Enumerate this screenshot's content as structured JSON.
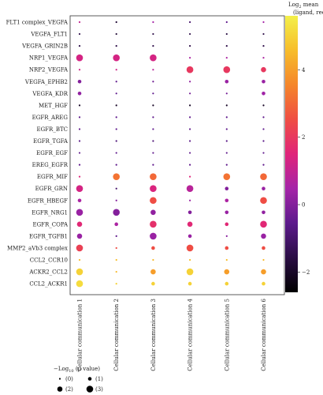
{
  "chart_data": {
    "type": "scatter",
    "rows": [
      "FLT1 complex_VEGFA",
      "VEGFA_FLT1",
      "VEGFA_GRIN2B",
      "NRP1_VEGFA",
      "NRP2_VEGFA",
      "VEGFA_EPHB2",
      "VEGFA_KDR",
      "MET_HGF",
      "EGFR_AREG",
      "EGFR_BTC",
      "EGFR_TGFA",
      "EGFR_EGF",
      "EREG_EGFR",
      "EGFR_MIF",
      "EGFR_GRN",
      "EGFR_HBEGF",
      "EGFR_NRG1",
      "EGFR_COPA",
      "EGFR_TGFB1",
      "MMP2_aVb3 complex",
      "CCL2_CCR10",
      "ACKR2_CCL2",
      "CCL2_ACKR1"
    ],
    "columns": [
      "Cellular communication 1",
      "Cellular communication 2",
      "Cellular communication 3",
      "Cellular communication 4",
      "Cellular communication 5",
      "Cellular communication 6"
    ],
    "mean_log2": [
      [
        1.0,
        -1.8,
        0.5,
        -1.0,
        -0.5,
        0.5
      ],
      [
        -1.5,
        -1.8,
        -1.5,
        -1.5,
        -1.6,
        -1.5
      ],
      [
        -1.5,
        -1.5,
        -1.5,
        -1.5,
        -1.5,
        -1.5
      ],
      [
        1.3,
        1.3,
        1.3,
        0.6,
        0.6,
        0.6
      ],
      [
        1.2,
        1.2,
        0.8,
        2.0,
        2.0,
        2.0
      ],
      [
        0.0,
        -0.5,
        -0.3,
        0.2,
        0.3,
        0.3
      ],
      [
        0.2,
        -0.5,
        -0.5,
        -0.2,
        -0.2,
        0.4
      ],
      [
        -2.0,
        -2.0,
        -2.0,
        -2.0,
        -2.0,
        -2.0
      ],
      [
        -0.5,
        -0.5,
        -0.5,
        -0.5,
        -0.5,
        -0.5
      ],
      [
        -0.5,
        -0.5,
        -0.5,
        -0.5,
        -0.5,
        -0.5
      ],
      [
        -0.6,
        -0.8,
        -0.8,
        -0.6,
        -0.6,
        -0.6
      ],
      [
        -0.5,
        -0.5,
        -0.5,
        -0.5,
        -0.5,
        -0.5
      ],
      [
        -0.5,
        -0.5,
        -0.5,
        -0.5,
        -0.5,
        -0.5
      ],
      [
        1.5,
        3.2,
        3.0,
        1.5,
        3.2,
        3.0
      ],
      [
        1.3,
        -1.0,
        1.4,
        0.8,
        0.0,
        0.3
      ],
      [
        0.6,
        0.0,
        2.5,
        0.3,
        0.6,
        2.5
      ],
      [
        0.3,
        0.0,
        0.2,
        0.0,
        0.3,
        0.2
      ],
      [
        1.6,
        0.6,
        1.8,
        1.6,
        1.6,
        1.6
      ],
      [
        0.3,
        -0.5,
        0.3,
        0.3,
        0.1,
        0.3
      ],
      [
        2.2,
        2.5,
        2.5,
        2.5,
        2.5,
        2.5
      ],
      [
        4.5,
        4.6,
        4.5,
        4.6,
        4.6,
        4.5
      ],
      [
        5.0,
        4.5,
        4.0,
        5.0,
        4.0,
        4.0
      ],
      [
        5.2,
        5.0,
        5.0,
        5.0,
        5.0,
        5.0
      ]
    ],
    "neglog10_p": [
      [
        0,
        0,
        0,
        0,
        0,
        0
      ],
      [
        0,
        0,
        0,
        0,
        0,
        0
      ],
      [
        0,
        0,
        0,
        0,
        0,
        0
      ],
      [
        3,
        3,
        3,
        0,
        0,
        0
      ],
      [
        0,
        0,
        0,
        3,
        3,
        2
      ],
      [
        1,
        0,
        0,
        0,
        1,
        1
      ],
      [
        1,
        0,
        0,
        0,
        0,
        1
      ],
      [
        0,
        0,
        0,
        0,
        0,
        0
      ],
      [
        0,
        0,
        0,
        0,
        0,
        0
      ],
      [
        0,
        0,
        0,
        0,
        0,
        0
      ],
      [
        0,
        0,
        0,
        0,
        0,
        0
      ],
      [
        0,
        0,
        0,
        0,
        0,
        0
      ],
      [
        0,
        0,
        0,
        0,
        0,
        0
      ],
      [
        0,
        3,
        3,
        0,
        3,
        3
      ],
      [
        3,
        0,
        3,
        3,
        1,
        1
      ],
      [
        1,
        0,
        3,
        0,
        1,
        3
      ],
      [
        3,
        3,
        2,
        1,
        1,
        1
      ],
      [
        2,
        1,
        3,
        2,
        1,
        3
      ],
      [
        2,
        0,
        3,
        1,
        0,
        2
      ],
      [
        3,
        0,
        1,
        3,
        1,
        1
      ],
      [
        0,
        0,
        0,
        0,
        0,
        0
      ],
      [
        3,
        0,
        2,
        3,
        2,
        2
      ],
      [
        3,
        0,
        1,
        1,
        1,
        1
      ]
    ],
    "colorbar": {
      "title_line1": "Log",
      "title_sub": "2",
      "title_line1b": " mean",
      "title_line2": "(ligand, receptor)",
      "range": [
        -2.6,
        5.6
      ],
      "ticks": [
        4,
        2,
        0,
        -2
      ],
      "tick_labels": [
        "4",
        "2",
        "0",
        "−2"
      ],
      "colors": [
        "#000000",
        "#2a0d44",
        "#5c1a8c",
        "#a524a8",
        "#e0247a",
        "#ef4e43",
        "#f5862a",
        "#f7bd2a",
        "#f3f04a"
      ]
    },
    "legend": {
      "title": "−Log",
      "title_sub": "10",
      "title_rest": " (p value)",
      "entries": [
        "(0)",
        "(1)",
        "(2)",
        "(3)"
      ],
      "levels": [
        0,
        1,
        2,
        3
      ]
    }
  }
}
